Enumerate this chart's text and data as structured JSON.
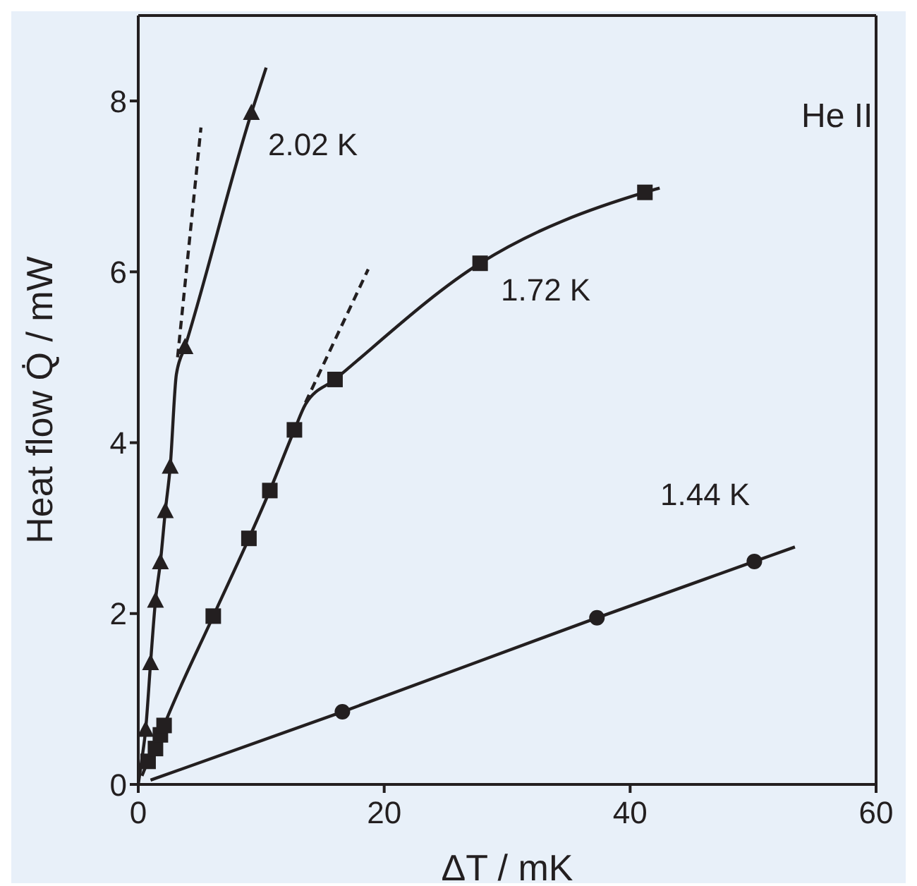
{
  "chart_data": {
    "type": "scatter",
    "xlabel": "ΔT / mK",
    "ylabel": "Heat flow Q̇ / mW",
    "xlim": [
      0,
      60
    ],
    "ylim": [
      0,
      9
    ],
    "xticks": [
      0,
      20,
      40,
      60
    ],
    "yticks": [
      0,
      2,
      4,
      6,
      8
    ],
    "series": [
      {
        "type": "line",
        "marker": "none",
        "line_style": "solid",
        "color": "#231f20",
        "x": [
          0,
          0.3,
          0.6,
          1.0,
          1.4,
          1.8,
          2.2,
          2.6,
          3.1,
          3.8,
          9.2,
          10.4
        ],
        "values": [
          0,
          0.3,
          0.64,
          1.42,
          2.15,
          2.6,
          3.2,
          3.72,
          4.8,
          5.12,
          7.86,
          8.39
        ]
      },
      {
        "type": "line",
        "marker": "none",
        "line_style": "dashed",
        "color": "#231f20",
        "x": [
          3.2,
          5.1
        ],
        "values": [
          5.0,
          7.69
        ]
      },
      {
        "marker": "triangle",
        "color": "#231f20",
        "x": [
          0.6,
          1.0,
          1.4,
          1.8,
          2.2,
          2.6,
          3.8,
          9.2
        ],
        "values": [
          0.64,
          1.42,
          2.15,
          2.6,
          3.2,
          3.72,
          5.12,
          7.86
        ]
      },
      {
        "type": "line",
        "marker": "none",
        "line_style": "solid",
        "color": "#231f20",
        "x": [
          0.3,
          0.8,
          1.4,
          1.8,
          2.1,
          6.1,
          9.0,
          10.7,
          12.7,
          13.6,
          16.0,
          27.8,
          41.2,
          42.4
        ],
        "values": [
          0.1,
          0.27,
          0.42,
          0.58,
          0.69,
          1.97,
          2.88,
          3.44,
          4.15,
          4.45,
          4.74,
          6.1,
          6.93,
          6.98
        ]
      },
      {
        "type": "line",
        "marker": "none",
        "line_style": "dashed",
        "color": "#231f20",
        "x": [
          13.6,
          18.7
        ],
        "values": [
          4.47,
          6.03
        ]
      },
      {
        "marker": "square",
        "color": "#231f20",
        "x": [
          0.8,
          1.4,
          1.8,
          2.1,
          6.1,
          9.0,
          10.7,
          12.7,
          16.0,
          27.8,
          41.2
        ],
        "values": [
          0.27,
          0.42,
          0.58,
          0.69,
          1.97,
          2.88,
          3.44,
          4.15,
          4.74,
          6.1,
          6.93
        ]
      },
      {
        "type": "line",
        "marker": "none",
        "line_style": "solid",
        "color": "#231f20",
        "x": [
          1,
          16.6,
          37.3,
          50.1,
          53.4
        ],
        "values": [
          0.05,
          0.85,
          1.95,
          2.61,
          2.78
        ]
      },
      {
        "marker": "circle",
        "color": "#231f20",
        "x": [
          16.6,
          37.3,
          50.1
        ],
        "values": [
          0.85,
          1.95,
          2.61
        ]
      }
    ],
    "annotations": [
      "2.02 K",
      "1.72 K",
      "1.44 K",
      "He II"
    ]
  }
}
